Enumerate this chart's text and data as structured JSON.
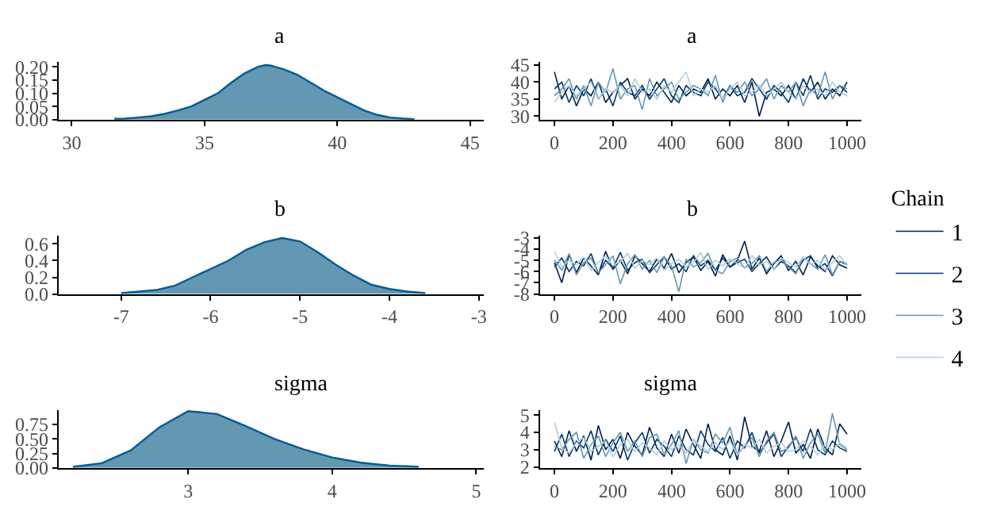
{
  "chart_data": [
    {
      "type": "area",
      "title": "a",
      "x": [
        31.6,
        32,
        32.5,
        33,
        33.5,
        34,
        34.5,
        35,
        35.5,
        36,
        36.5,
        37,
        37.3,
        37.5,
        38,
        38.5,
        39,
        39.5,
        40,
        40.5,
        41,
        41.5,
        42,
        42.5,
        42.9
      ],
      "series": [
        {
          "color": "#6497b1",
          "values": [
            0.003,
            0.004,
            0.008,
            0.013,
            0.022,
            0.035,
            0.05,
            0.075,
            0.1,
            0.14,
            0.175,
            0.2,
            0.207,
            0.205,
            0.19,
            0.17,
            0.14,
            0.11,
            0.085,
            0.06,
            0.035,
            0.018,
            0.008,
            0.004,
            0.002
          ]
        }
      ],
      "xlim": [
        29.5,
        45.5
      ],
      "xticks": [
        30,
        35,
        40,
        45
      ],
      "ylim": [
        0,
        0.22
      ],
      "yticks": [
        {
          "value": 0,
          "label": "0.00"
        },
        {
          "value": 0.05,
          "label": "0.05"
        },
        {
          "value": 0.1,
          "label": "0.10"
        },
        {
          "value": 0.15,
          "label": "0.15"
        },
        {
          "value": 0.2,
          "label": "0.20"
        }
      ]
    },
    {
      "type": "line",
      "title": "a",
      "x": [
        0,
        25,
        50,
        75,
        100,
        125,
        150,
        175,
        200,
        225,
        250,
        275,
        300,
        325,
        350,
        375,
        400,
        425,
        450,
        475,
        500,
        525,
        550,
        575,
        600,
        625,
        650,
        675,
        700,
        725,
        750,
        775,
        800,
        825,
        850,
        875,
        900,
        925,
        950,
        975,
        1000
      ],
      "series": [
        {
          "color": "#011f4b",
          "values": [
            43,
            35,
            39,
            33,
            38,
            36,
            40,
            34,
            37,
            39,
            41,
            35,
            38,
            36,
            40,
            37,
            34,
            39,
            36,
            38,
            37,
            41,
            35,
            38,
            36,
            39,
            34,
            40,
            30,
            37,
            38,
            36,
            39,
            35,
            41,
            37,
            40,
            35,
            38,
            36,
            40
          ]
        },
        {
          "color": "#03396c",
          "values": [
            38,
            40,
            34,
            39,
            36,
            41,
            35,
            38,
            33,
            40,
            37,
            36,
            39,
            35,
            38,
            41,
            36,
            34,
            39,
            37,
            36,
            40,
            38,
            35,
            39,
            36,
            37,
            41,
            38,
            35,
            39,
            37,
            34,
            40,
            36,
            42,
            35,
            38,
            37,
            39,
            37
          ]
        },
        {
          "color": "#6497b1",
          "values": [
            36,
            38,
            41,
            35,
            39,
            33,
            40,
            37,
            44,
            35,
            38,
            39,
            32,
            41,
            36,
            38,
            40,
            35,
            37,
            39,
            38,
            36,
            42,
            34,
            39,
            37,
            40,
            36,
            38,
            41,
            35,
            39,
            37,
            40,
            33,
            38,
            36,
            43,
            35,
            39,
            38
          ]
        },
        {
          "color": "#b3cde0",
          "values": [
            34,
            37,
            39,
            36,
            38,
            40,
            35,
            38,
            37,
            39,
            36,
            41,
            37,
            38,
            35,
            39,
            37,
            40,
            43,
            36,
            38,
            37,
            39,
            35,
            38,
            40,
            36,
            37,
            39,
            36,
            38,
            40,
            37,
            35,
            39,
            37,
            38,
            36,
            40,
            37,
            36
          ]
        }
      ],
      "xlim": [
        -50,
        1050
      ],
      "xticks": [
        0,
        200,
        400,
        600,
        800,
        1000
      ],
      "ylim": [
        29,
        46
      ],
      "yticks": [
        30,
        35,
        40,
        45
      ]
    },
    {
      "type": "area",
      "title": "b",
      "x": [
        -7,
        -6.8,
        -6.6,
        -6.4,
        -6.2,
        -6,
        -5.8,
        -5.6,
        -5.4,
        -5.2,
        -5,
        -4.8,
        -4.6,
        -4.4,
        -4.2,
        -4,
        -3.8,
        -3.6
      ],
      "series": [
        {
          "color": "#6497b1",
          "values": [
            0.01,
            0.03,
            0.05,
            0.1,
            0.2,
            0.3,
            0.4,
            0.53,
            0.62,
            0.67,
            0.63,
            0.5,
            0.35,
            0.22,
            0.11,
            0.06,
            0.03,
            0.01
          ]
        }
      ],
      "xlim": [
        -7.7,
        -2.95
      ],
      "xticks": [
        -7,
        -6,
        -5,
        -4,
        -3
      ],
      "ylim": [
        0,
        0.7
      ],
      "yticks": [
        {
          "value": 0,
          "label": "0.0"
        },
        {
          "value": 0.2,
          "label": "0.2"
        },
        {
          "value": 0.4,
          "label": "0.4"
        },
        {
          "value": 0.6,
          "label": "0.6"
        }
      ]
    },
    {
      "type": "line",
      "title": "b",
      "legend": "right",
      "legend_title": "Chain",
      "x": [
        0,
        25,
        50,
        75,
        100,
        125,
        150,
        175,
        200,
        225,
        250,
        275,
        300,
        325,
        350,
        375,
        400,
        425,
        450,
        475,
        500,
        525,
        550,
        575,
        600,
        625,
        650,
        675,
        700,
        725,
        750,
        775,
        800,
        825,
        850,
        875,
        900,
        925,
        950,
        975,
        1000
      ],
      "series": [
        {
          "name": "1",
          "color": "#011f4b",
          "values": [
            -5.2,
            -7.0,
            -4.5,
            -6.1,
            -4.8,
            -5.5,
            -6.3,
            -4.2,
            -5.8,
            -5.0,
            -6.2,
            -4.6,
            -5.3,
            -6.0,
            -4.9,
            -5.7,
            -4.4,
            -6.1,
            -5.2,
            -4.7,
            -5.9,
            -5.1,
            -6.4,
            -4.5,
            -5.6,
            -5.0,
            -3.3,
            -5.8,
            -4.8,
            -6.2,
            -5.3,
            -4.6,
            -5.9,
            -5.1,
            -6.3,
            -4.7,
            -5.5,
            -6.0,
            -4.6,
            -5.4,
            -5.7
          ]
        },
        {
          "name": "2",
          "color": "#03396c",
          "values": [
            -5.6,
            -4.8,
            -6.0,
            -5.1,
            -5.5,
            -4.4,
            -6.2,
            -5.0,
            -5.7,
            -4.3,
            -5.9,
            -5.2,
            -4.9,
            -6.1,
            -5.4,
            -4.7,
            -5.8,
            -5.3,
            -6.0,
            -4.6,
            -5.5,
            -5.0,
            -5.9,
            -4.8,
            -5.6,
            -5.2,
            -4.9,
            -6.0,
            -5.3,
            -4.7,
            -5.8,
            -5.1,
            -5.5,
            -6.1,
            -5.0,
            -4.6,
            -5.7,
            -5.3,
            -6.4,
            -5.1,
            -5.4
          ]
        },
        {
          "name": "3",
          "color": "#6497b1",
          "values": [
            -5.0,
            -5.9,
            -4.4,
            -6.3,
            -5.2,
            -4.8,
            -6.1,
            -5.4,
            -4.6,
            -7.1,
            -5.3,
            -4.5,
            -5.8,
            -5.0,
            -6.1,
            -4.7,
            -5.5,
            -7.8,
            -4.9,
            -5.6,
            -5.2,
            -4.4,
            -5.9,
            -6.2,
            -5.1,
            -4.8,
            -5.7,
            -5.3,
            -4.6,
            -6.0,
            -5.2,
            -4.9,
            -5.6,
            -6.2,
            -4.7,
            -5.3,
            -5.8,
            -4.5,
            -6.3,
            -5.1,
            -5.3
          ]
        },
        {
          "name": "4",
          "color": "#b3cde0",
          "values": [
            -4.2,
            -5.6,
            -5.0,
            -5.4,
            -4.7,
            -5.9,
            -5.2,
            -4.6,
            -5.5,
            -5.1,
            -4.4,
            -5.7,
            -5.0,
            -5.4,
            -4.8,
            -5.9,
            -5.3,
            -4.9,
            -5.6,
            -5.2,
            -4.3,
            -5.8,
            -5.0,
            -5.5,
            -4.9,
            -5.3,
            -5.7,
            -4.6,
            -5.4,
            -5.1,
            -5.8,
            -4.8,
            -5.2,
            -5.6,
            -4.7,
            -5.4,
            -5.0,
            -5.9,
            -5.2,
            -4.6,
            -5.5
          ]
        }
      ],
      "xlim": [
        -50,
        1050
      ],
      "xticks": [
        0,
        200,
        400,
        600,
        800,
        1000
      ],
      "ylim": [
        -8,
        -2.8
      ],
      "yticks": [
        -8,
        -7,
        -6,
        -5,
        -4,
        -3
      ]
    },
    {
      "type": "area",
      "title": "sigma",
      "x": [
        2.2,
        2.4,
        2.6,
        2.8,
        3.0,
        3.2,
        3.4,
        3.6,
        3.8,
        4.0,
        4.2,
        4.4,
        4.6
      ],
      "series": [
        {
          "color": "#6497b1",
          "values": [
            0.02,
            0.08,
            0.3,
            0.7,
            0.98,
            0.93,
            0.72,
            0.5,
            0.32,
            0.18,
            0.09,
            0.04,
            0.02
          ]
        }
      ],
      "xlim": [
        2.1,
        5.05
      ],
      "xticks": [
        3,
        4,
        5
      ],
      "ylim": [
        0,
        1.0
      ],
      "yticks": [
        {
          "value": 0,
          "label": "0.00"
        },
        {
          "value": 0.25,
          "label": "0.25"
        },
        {
          "value": 0.5,
          "label": "0.50"
        },
        {
          "value": 0.75,
          "label": "0.75"
        }
      ]
    },
    {
      "type": "line",
      "title": "sigma",
      "x": [
        0,
        25,
        50,
        75,
        100,
        125,
        150,
        175,
        200,
        225,
        250,
        275,
        300,
        325,
        350,
        375,
        400,
        425,
        450,
        475,
        500,
        525,
        550,
        575,
        600,
        625,
        650,
        675,
        700,
        725,
        750,
        775,
        800,
        825,
        850,
        875,
        900,
        925,
        950,
        975,
        1000
      ],
      "series": [
        {
          "color": "#011f4b",
          "values": [
            3.5,
            2.6,
            4.1,
            2.9,
            3.8,
            2.4,
            4.4,
            3.0,
            3.6,
            2.5,
            4.0,
            3.2,
            2.7,
            4.3,
            3.1,
            2.6,
            3.9,
            2.8,
            4.2,
            3.3,
            2.5,
            4.5,
            3.0,
            2.7,
            3.8,
            2.4,
            4.9,
            3.2,
            2.9,
            4.1,
            2.6,
            3.5,
            4.6,
            2.8,
            3.3,
            2.5,
            4.2,
            3.1,
            2.7,
            4.5,
            3.9
          ]
        },
        {
          "color": "#03396c",
          "values": [
            2.9,
            3.9,
            2.6,
            3.5,
            3.1,
            4.1,
            2.7,
            3.6,
            2.9,
            3.8,
            2.4,
            3.4,
            4.0,
            2.8,
            3.6,
            3.2,
            2.6,
            3.8,
            3.0,
            2.7,
            4.1,
            3.3,
            2.9,
            3.7,
            2.5,
            3.5,
            3.1,
            4.0,
            2.8,
            3.4,
            3.9,
            2.6,
            3.2,
            3.7,
            2.9,
            4.2,
            3.0,
            2.7,
            3.5,
            3.1,
            2.9
          ]
        },
        {
          "color": "#6497b1",
          "values": [
            3.2,
            3.0,
            3.6,
            4.0,
            2.5,
            3.3,
            3.8,
            2.6,
            3.4,
            4.0,
            2.9,
            3.5,
            2.6,
            3.7,
            3.9,
            2.7,
            3.3,
            4.1,
            2.2,
            3.6,
            3.0,
            2.8,
            3.9,
            3.4,
            4.3,
            2.7,
            3.2,
            3.7,
            2.6,
            3.5,
            4.0,
            2.9,
            3.1,
            3.8,
            2.5,
            3.4,
            3.9,
            2.8,
            5.1,
            3.3,
            3.0
          ]
        },
        {
          "color": "#b3cde0",
          "values": [
            4.6,
            3.1,
            2.8,
            3.4,
            3.7,
            2.9,
            3.2,
            3.5,
            2.6,
            3.3,
            3.6,
            2.9,
            3.4,
            3.1,
            2.7,
            3.5,
            3.0,
            3.3,
            2.8,
            3.6,
            3.2,
            2.9,
            3.4,
            3.0,
            3.5,
            2.7,
            3.3,
            3.1,
            3.6,
            2.8,
            3.2,
            3.4,
            2.9,
            3.0,
            3.5,
            3.2,
            2.7,
            3.3,
            3.0,
            3.4,
            3.1
          ]
        }
      ],
      "xlim": [
        -50,
        1050
      ],
      "xticks": [
        0,
        200,
        400,
        600,
        800,
        1000
      ],
      "ylim": [
        1.95,
        5.3
      ],
      "yticks": [
        2,
        3,
        4,
        5
      ]
    }
  ]
}
